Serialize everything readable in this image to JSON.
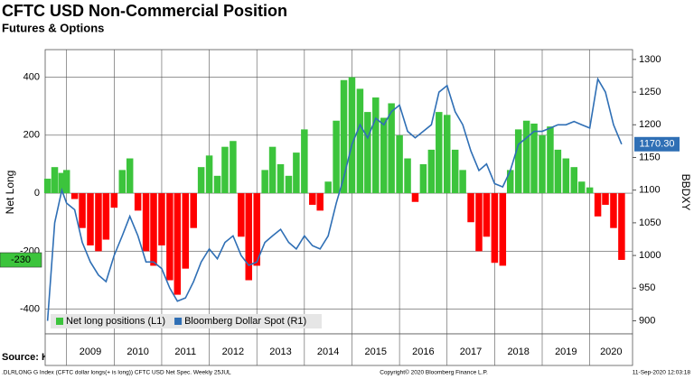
{
  "chart_data": {
    "type": "bar-line",
    "title": "CFTC USD Non-Commercial Position",
    "subtitle": "Futures & Options",
    "ylabel": "Net Long",
    "y2label": "BBDXY",
    "source": "Source: Knowledge Leaders Capital",
    "footer_left": ".DLRLONG G Index (CFTC dollar longs(+ is long)) CFTC USD Net Spec. Weekly 25JUL",
    "footer_center": "Copyright© 2020 Bloomberg Finance L.P.",
    "footer_right": "11-Sep-2020 12:03:18",
    "xlim": [
      2008.55,
      2020.9
    ],
    "xticks": [
      {
        "value": 2009,
        "label": "2009"
      },
      {
        "value": 2010,
        "label": "2010"
      },
      {
        "value": 2011,
        "label": "2011"
      },
      {
        "value": 2012,
        "label": "2012"
      },
      {
        "value": 2013,
        "label": "2013"
      },
      {
        "value": 2014,
        "label": "2014"
      },
      {
        "value": 2015,
        "label": "2015"
      },
      {
        "value": 2016,
        "label": "2016"
      },
      {
        "value": 2017,
        "label": "2017"
      },
      {
        "value": 2018,
        "label": "2018"
      },
      {
        "value": 2019,
        "label": "2019"
      },
      {
        "value": 2020,
        "label": "2020"
      }
    ],
    "ylim": [
      -485,
      495
    ],
    "yticks": [
      -400,
      -200,
      0,
      200,
      400
    ],
    "y2lim": [
      880,
      1315
    ],
    "y2ticks": [
      900,
      950,
      1000,
      1050,
      1100,
      1150,
      1200,
      1250,
      1300
    ],
    "grid": true,
    "legend": "lower left",
    "x": [
      2008.6,
      2008.75,
      2008.9,
      2009.0,
      2009.17,
      2009.33,
      2009.5,
      2009.67,
      2009.83,
      2010.0,
      2010.17,
      2010.33,
      2010.5,
      2010.67,
      2010.83,
      2011.0,
      2011.17,
      2011.33,
      2011.5,
      2011.67,
      2011.83,
      2012.0,
      2012.17,
      2012.33,
      2012.5,
      2012.67,
      2012.83,
      2013.0,
      2013.17,
      2013.33,
      2013.5,
      2013.67,
      2013.83,
      2014.0,
      2014.17,
      2014.33,
      2014.5,
      2014.67,
      2014.83,
      2015.0,
      2015.17,
      2015.33,
      2015.5,
      2015.67,
      2015.83,
      2016.0,
      2016.17,
      2016.33,
      2016.5,
      2016.67,
      2016.83,
      2017.0,
      2017.17,
      2017.33,
      2017.5,
      2017.67,
      2017.83,
      2018.0,
      2018.17,
      2018.33,
      2018.5,
      2018.67,
      2018.83,
      2019.0,
      2019.17,
      2019.33,
      2019.5,
      2019.67,
      2019.83,
      2020.0,
      2020.17,
      2020.33,
      2020.5,
      2020.67
    ],
    "series": [
      {
        "name": "Net long positions (L1)",
        "kind": "bar",
        "color": "#3cc43c",
        "negative_color": "#ff0000",
        "values": [
          50,
          90,
          70,
          80,
          -20,
          -120,
          -180,
          -200,
          -160,
          -50,
          80,
          120,
          -60,
          -200,
          -250,
          -180,
          -300,
          -350,
          -260,
          -120,
          90,
          130,
          60,
          160,
          180,
          -150,
          -300,
          -250,
          80,
          160,
          100,
          60,
          140,
          220,
          -40,
          -60,
          40,
          250,
          390,
          400,
          360,
          280,
          330,
          260,
          310,
          200,
          120,
          -30,
          100,
          150,
          280,
          270,
          150,
          80,
          -100,
          -200,
          -150,
          -240,
          -250,
          80,
          220,
          250,
          240,
          200,
          230,
          150,
          120,
          90,
          40,
          20,
          -80,
          -40,
          -120,
          -230
        ]
      },
      {
        "name": "Bloomberg Dollar Spot  (R1)",
        "kind": "line",
        "axis": "y2",
        "color": "#2f6fb5",
        "values": [
          900,
          1050,
          1100,
          1080,
          1070,
          1020,
          990,
          970,
          960,
          1000,
          1030,
          1060,
          1030,
          990,
          990,
          980,
          950,
          930,
          935,
          960,
          990,
          1010,
          995,
          1020,
          1030,
          1000,
          985,
          990,
          1020,
          1030,
          1040,
          1020,
          1010,
          1030,
          1015,
          1010,
          1030,
          1080,
          1120,
          1170,
          1200,
          1180,
          1210,
          1200,
          1220,
          1230,
          1190,
          1180,
          1190,
          1200,
          1250,
          1260,
          1220,
          1200,
          1160,
          1130,
          1140,
          1110,
          1105,
          1130,
          1170,
          1180,
          1190,
          1190,
          1195,
          1200,
          1200,
          1205,
          1200,
          1195,
          1270,
          1250,
          1200,
          1170.3
        ],
        "value_labels": [
          null,
          null,
          null,
          null,
          null,
          null,
          null,
          null,
          null,
          null,
          null,
          null,
          null,
          null,
          null,
          null,
          null,
          null,
          null,
          null,
          null,
          null,
          null,
          null,
          null,
          null,
          null,
          null,
          null,
          null,
          null,
          null,
          null,
          null,
          null,
          null,
          null,
          null,
          null,
          null,
          null,
          null,
          null,
          null,
          null,
          null,
          null,
          null,
          null,
          null,
          null,
          null,
          null,
          null,
          null,
          null,
          null,
          null,
          null,
          null,
          null,
          null,
          null,
          null,
          null,
          null,
          null,
          null,
          null,
          null,
          null,
          null,
          null,
          "1170.30"
        ]
      }
    ]
  }
}
